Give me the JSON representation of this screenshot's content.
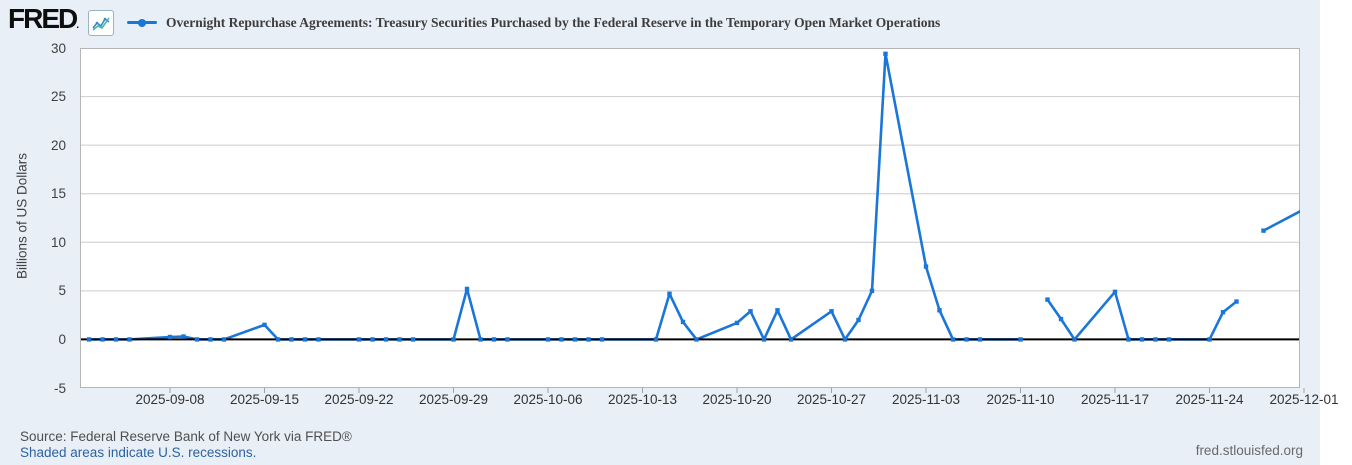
{
  "header": {
    "logo_text": "FRED",
    "logo_mark": ".",
    "series_title": "Overnight Repurchase Agreements: Treasury Securities Purchased by the Federal Reserve in the Temporary Open Market Operations"
  },
  "footer": {
    "source_line": "Source: Federal Reserve Bank of New York via FRED®",
    "recessions_link": "Shaded areas indicate U.S. recessions.",
    "site_link": "fred.stlouisfed.org"
  },
  "chart_data": {
    "type": "line",
    "title": "Overnight Repurchase Agreements: Treasury Securities Purchased by the Federal Reserve in the Temporary Open Market Operations",
    "xlabel": "",
    "ylabel": "Billions of US Dollars",
    "ylim": [
      -5,
      30
    ],
    "yticks": [
      30,
      25,
      20,
      15,
      10,
      5,
      0,
      -5
    ],
    "ygrid": [
      25,
      20,
      15,
      10,
      5
    ],
    "grid": true,
    "legend_position": "top",
    "line_color": "#1a76d9",
    "x_start": "2025-09-01",
    "xticks": [
      "2025-09-08",
      "2025-09-15",
      "2025-09-22",
      "2025-09-29",
      "2025-10-06",
      "2025-10-13",
      "2025-10-20",
      "2025-10-27",
      "2025-11-03",
      "2025-11-10",
      "2025-11-17",
      "2025-11-24",
      "2025-12-01"
    ],
    "series": [
      {
        "name": "Overnight Repurchase Agreements: Treasury Securities Purchased by the Federal Reserve in the Temporary Open Market Operations",
        "units": "Billions of US Dollars",
        "segments": [
          [
            [
              "2025-09-02",
              0.0
            ],
            [
              "2025-09-03",
              0.0
            ],
            [
              "2025-09-04",
              0.0
            ],
            [
              "2025-09-05",
              0.0
            ],
            [
              "2025-09-08",
              0.25
            ],
            [
              "2025-09-09",
              0.3
            ],
            [
              "2025-09-10",
              0.0
            ],
            [
              "2025-09-11",
              0.0
            ],
            [
              "2025-09-12",
              0.0
            ],
            [
              "2025-09-15",
              1.5
            ],
            [
              "2025-09-16",
              0.0
            ],
            [
              "2025-09-17",
              0.0
            ],
            [
              "2025-09-18",
              0.0
            ],
            [
              "2025-09-19",
              0.0
            ],
            [
              "2025-09-22",
              0.0
            ],
            [
              "2025-09-23",
              0.0
            ],
            [
              "2025-09-24",
              0.0
            ],
            [
              "2025-09-25",
              0.0
            ],
            [
              "2025-09-26",
              0.0
            ],
            [
              "2025-09-29",
              0.0
            ],
            [
              "2025-09-30",
              5.2
            ],
            [
              "2025-10-01",
              0.0
            ],
            [
              "2025-10-02",
              0.0
            ],
            [
              "2025-10-03",
              0.0
            ],
            [
              "2025-10-06",
              0.0
            ],
            [
              "2025-10-07",
              0.0
            ],
            [
              "2025-10-08",
              0.0
            ],
            [
              "2025-10-09",
              0.0
            ],
            [
              "2025-10-10",
              0.0
            ],
            [
              "2025-10-14",
              0.0
            ],
            [
              "2025-10-15",
              4.7
            ],
            [
              "2025-10-16",
              1.8
            ],
            [
              "2025-10-17",
              0.0
            ],
            [
              "2025-10-20",
              1.7
            ],
            [
              "2025-10-21",
              2.9
            ],
            [
              "2025-10-22",
              0.0
            ],
            [
              "2025-10-23",
              3.0
            ],
            [
              "2025-10-24",
              0.0
            ],
            [
              "2025-10-27",
              2.9
            ],
            [
              "2025-10-28",
              0.0
            ],
            [
              "2025-10-29",
              2.0
            ],
            [
              "2025-10-30",
              5.0
            ],
            [
              "2025-10-31",
              29.4
            ],
            [
              "2025-11-03",
              7.5
            ],
            [
              "2025-11-04",
              3.0
            ],
            [
              "2025-11-05",
              0.0
            ],
            [
              "2025-11-06",
              0.0
            ],
            [
              "2025-11-07",
              0.0
            ],
            [
              "2025-11-10",
              0.0
            ]
          ],
          [
            [
              "2025-11-12",
              4.1
            ],
            [
              "2025-11-13",
              2.1
            ],
            [
              "2025-11-14",
              0.0
            ],
            [
              "2025-11-17",
              4.9
            ],
            [
              "2025-11-18",
              0.0
            ],
            [
              "2025-11-19",
              0.0
            ],
            [
              "2025-11-20",
              0.0
            ],
            [
              "2025-11-21",
              0.0
            ],
            [
              "2025-11-24",
              0.0
            ],
            [
              "2025-11-25",
              2.8
            ],
            [
              "2025-11-26",
              3.9
            ]
          ],
          [
            [
              "2025-11-28",
              11.2
            ],
            [
              "2025-12-01",
              13.4
            ]
          ]
        ]
      }
    ]
  }
}
